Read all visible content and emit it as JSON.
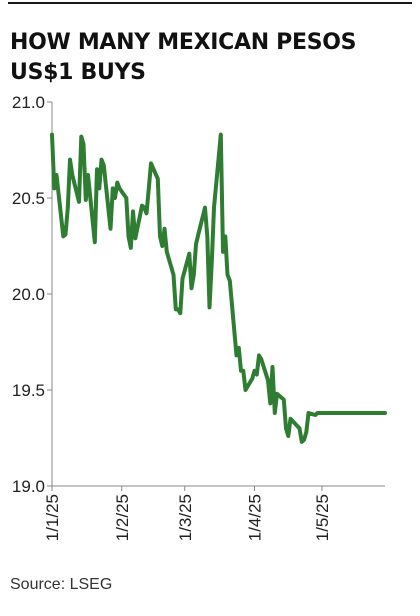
{
  "title": "HOW MANY MEXICAN PESOS US$1 BUYS",
  "source": "Source: LSEG",
  "colors": {
    "line": "#2e7d32",
    "axis": "#888888",
    "text": "#222222"
  },
  "chart_data": {
    "type": "line",
    "title": "HOW MANY MEXICAN PESOS US$1 BUYS",
    "xlabel": "",
    "ylabel": "",
    "ylim": [
      19.0,
      21.0
    ],
    "yticks": [
      19.0,
      19.5,
      20.0,
      20.5,
      21.0
    ],
    "ytick_labels": [
      "19.0",
      "19.5",
      "20.0",
      "20.5",
      "21.0"
    ],
    "xlim": [
      "2025-01-01",
      "2025-05-29"
    ],
    "xticks": [
      "2025-01-01",
      "2025-02-01",
      "2025-03-01",
      "2025-04-01",
      "2025-05-01"
    ],
    "xtick_labels": [
      "1/1/25",
      "1/2/25",
      "1/3/25",
      "1/4/25",
      "1/5/25"
    ],
    "grid": false,
    "series": [
      {
        "x": [
          "2025-01-01",
          "2025-01-02",
          "2025-01-03",
          "2025-01-06",
          "2025-01-07",
          "2025-01-08",
          "2025-01-09",
          "2025-01-10",
          "2025-01-13",
          "2025-01-14",
          "2025-01-15",
          "2025-01-16",
          "2025-01-17",
          "2025-01-20",
          "2025-01-21",
          "2025-01-22",
          "2025-01-23",
          "2025-01-24",
          "2025-01-27",
          "2025-01-28",
          "2025-01-29",
          "2025-01-30",
          "2025-01-31",
          "2025-02-03",
          "2025-02-04",
          "2025-02-05",
          "2025-02-06",
          "2025-02-07",
          "2025-02-10",
          "2025-02-11",
          "2025-02-12",
          "2025-02-13",
          "2025-02-14",
          "2025-02-17",
          "2025-02-18",
          "2025-02-19",
          "2025-02-20",
          "2025-02-21",
          "2025-02-24",
          "2025-02-25",
          "2025-02-26",
          "2025-02-27",
          "2025-02-28",
          "2025-03-03",
          "2025-03-04",
          "2025-03-05",
          "2025-03-06",
          "2025-03-07",
          "2025-03-10",
          "2025-03-11",
          "2025-03-12",
          "2025-03-13",
          "2025-03-14",
          "2025-03-17",
          "2025-03-18",
          "2025-03-19",
          "2025-03-20",
          "2025-03-21",
          "2025-03-24",
          "2025-03-25",
          "2025-03-26",
          "2025-03-27",
          "2025-03-28",
          "2025-03-31",
          "2025-04-01",
          "2025-04-02",
          "2025-04-03",
          "2025-04-04",
          "2025-04-07",
          "2025-04-08",
          "2025-04-09",
          "2025-04-10",
          "2025-04-11",
          "2025-04-14",
          "2025-04-15",
          "2025-04-16",
          "2025-04-17",
          "2025-04-21",
          "2025-04-22",
          "2025-04-23",
          "2025-04-24",
          "2025-04-25",
          "2025-04-28",
          "2025-04-29",
          "2025-04-30",
          "2025-05-01",
          "2025-05-02",
          "2025-05-05",
          "2025-05-06",
          "2025-05-07",
          "2025-05-08",
          "2025-05-09",
          "2025-05-12",
          "2025-05-13",
          "2025-05-14",
          "2025-05-15",
          "2025-05-16",
          "2025-05-19",
          "2025-05-20",
          "2025-05-21",
          "2025-05-22",
          "2025-05-23",
          "2025-05-26",
          "2025-05-27",
          "2025-05-28",
          "2025-05-29"
        ],
        "y": [
          20.83,
          20.55,
          20.62,
          20.3,
          20.31,
          20.45,
          20.7,
          20.62,
          20.48,
          20.82,
          20.78,
          20.49,
          20.62,
          20.27,
          20.65,
          20.55,
          20.7,
          20.67,
          20.34,
          20.55,
          20.5,
          20.58,
          20.55,
          20.5,
          20.3,
          20.24,
          20.43,
          20.29,
          20.46,
          20.45,
          20.42,
          20.55,
          20.68,
          20.6,
          20.3,
          20.25,
          20.34,
          20.22,
          20.1,
          19.92,
          19.92,
          19.9,
          20.08,
          20.21,
          20.03,
          20.1,
          20.26,
          20.31,
          20.45,
          20.3,
          19.93,
          20.17,
          20.45,
          20.83,
          20.22,
          20.3,
          20.1,
          20.07,
          19.68,
          19.72,
          19.6,
          19.6,
          19.5,
          19.56,
          19.6,
          19.58,
          19.68,
          19.66,
          19.55,
          19.43,
          19.62,
          19.38,
          19.48,
          19.45,
          19.3,
          19.26,
          19.35,
          19.3,
          19.23,
          19.24,
          19.28,
          19.38,
          19.37,
          19.38,
          19.38,
          19.38,
          19.38,
          19.38,
          19.38,
          19.38,
          19.38,
          19.38,
          19.38,
          19.38,
          19.38,
          19.38,
          19.38,
          19.38,
          19.38,
          19.38,
          19.38,
          19.38,
          19.38,
          19.38,
          19.38,
          19.38
        ]
      }
    ]
  }
}
